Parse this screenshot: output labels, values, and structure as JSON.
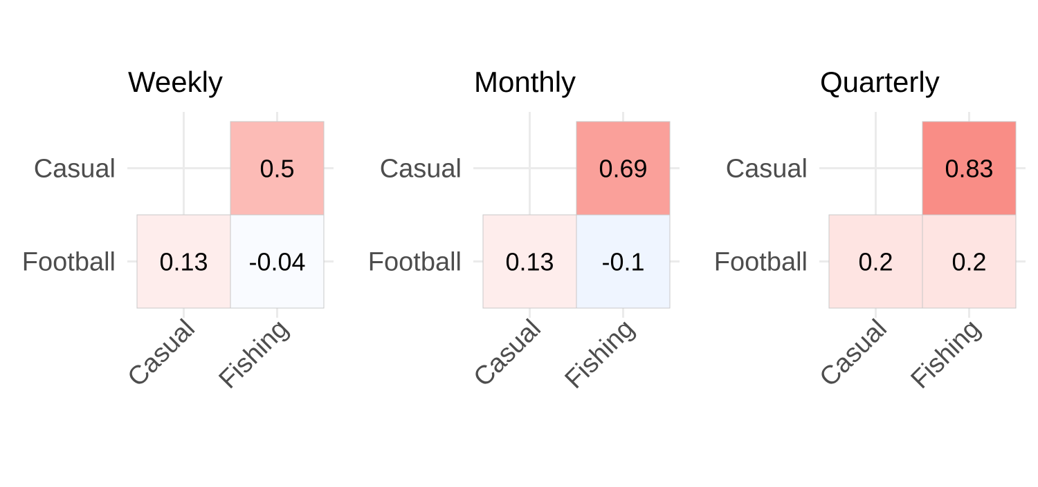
{
  "chart_data": [
    {
      "type": "heatmap",
      "title": "Weekly",
      "x_categories": [
        "Casual",
        "Fishing"
      ],
      "y_categories": [
        "Casual",
        "Football"
      ],
      "cells": [
        {
          "x": "Fishing",
          "y": "Casual",
          "value": 0.5,
          "label": "0.5"
        },
        {
          "x": "Casual",
          "y": "Football",
          "value": 0.13,
          "label": "0.13"
        },
        {
          "x": "Fishing",
          "y": "Football",
          "value": -0.04,
          "label": "-0.04"
        }
      ],
      "grid": true
    },
    {
      "type": "heatmap",
      "title": "Monthly",
      "x_categories": [
        "Casual",
        "Fishing"
      ],
      "y_categories": [
        "Casual",
        "Football"
      ],
      "cells": [
        {
          "x": "Fishing",
          "y": "Casual",
          "value": 0.69,
          "label": "0.69"
        },
        {
          "x": "Casual",
          "y": "Football",
          "value": 0.13,
          "label": "0.13"
        },
        {
          "x": "Fishing",
          "y": "Football",
          "value": -0.1,
          "label": "-0.1"
        }
      ],
      "grid": true
    },
    {
      "type": "heatmap",
      "title": "Quarterly",
      "x_categories": [
        "Casual",
        "Fishing"
      ],
      "y_categories": [
        "Casual",
        "Football"
      ],
      "cells": [
        {
          "x": "Fishing",
          "y": "Casual",
          "value": 0.83,
          "label": "0.83"
        },
        {
          "x": "Casual",
          "y": "Football",
          "value": 0.2,
          "label": "0.2"
        },
        {
          "x": "Fishing",
          "y": "Football",
          "value": 0.2,
          "label": "0.2"
        }
      ],
      "grid": true
    }
  ],
  "colors": {
    "positive_max": "#f8766d",
    "negative_max": "#619cff",
    "neutral": "#ffffff",
    "gridline": "#ebebeb",
    "tick_text": "#4d4d4d",
    "cell_border": "#c8c8c8"
  }
}
